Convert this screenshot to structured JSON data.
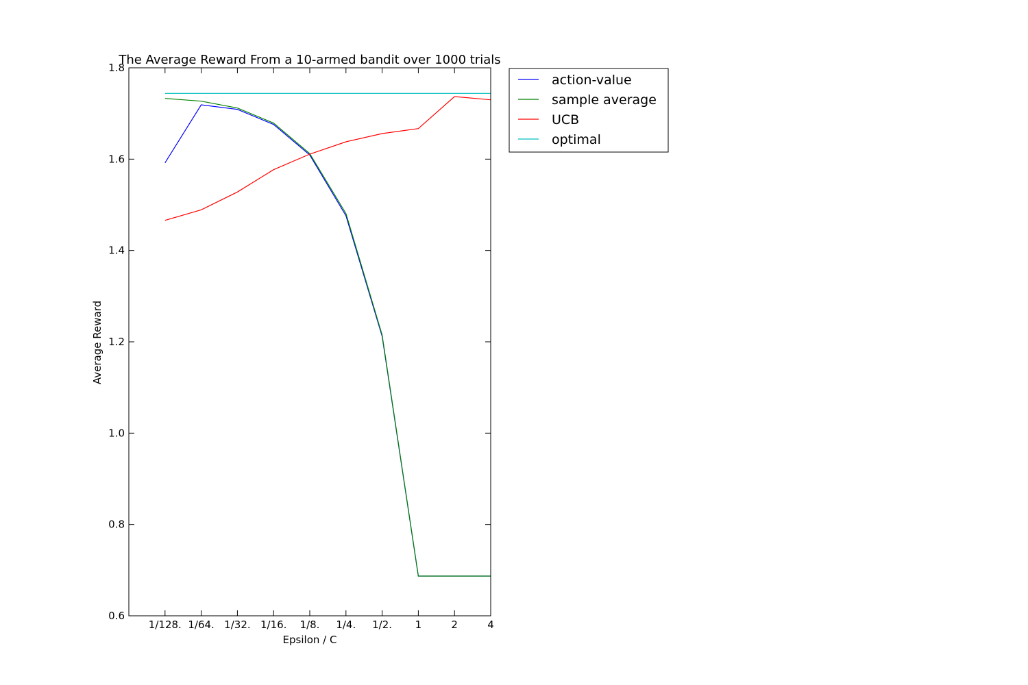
{
  "chart_data": {
    "type": "line",
    "title": "The Average Reward From a 10-armed bandit over 1000 trials",
    "xlabel": "Epsilon / C",
    "ylabel": "Average Reward",
    "categories": [
      "1/128.",
      "1/64.",
      "1/32.",
      "1/16.",
      "1/8.",
      "1/4.",
      "1/2.",
      "1",
      "2",
      "4"
    ],
    "ylim": [
      0.6,
      1.8
    ],
    "yticks": [
      "0.6",
      "0.8",
      "1.0",
      "1.2",
      "1.4",
      "1.6",
      "1.8"
    ],
    "grid": false,
    "legend_position": "outside-top-right",
    "series": [
      {
        "name": "action-value",
        "color": "#0000ff",
        "values": [
          1.592,
          1.719,
          1.709,
          1.676,
          1.609,
          1.476,
          1.212,
          0.687,
          0.687,
          0.687
        ]
      },
      {
        "name": "sample average",
        "color": "#008000",
        "values": [
          1.733,
          1.727,
          1.712,
          1.679,
          1.612,
          1.481,
          1.215,
          0.687,
          0.687,
          0.687
        ]
      },
      {
        "name": "UCB",
        "color": "#ff0000",
        "values": [
          1.466,
          1.489,
          1.528,
          1.577,
          1.611,
          1.638,
          1.656,
          1.667,
          1.737,
          1.73
        ]
      },
      {
        "name": "optimal",
        "color": "#00bfbf",
        "values": [
          1.744,
          1.744,
          1.744,
          1.744,
          1.744,
          1.744,
          1.744,
          1.744,
          1.744,
          1.744
        ]
      }
    ]
  }
}
